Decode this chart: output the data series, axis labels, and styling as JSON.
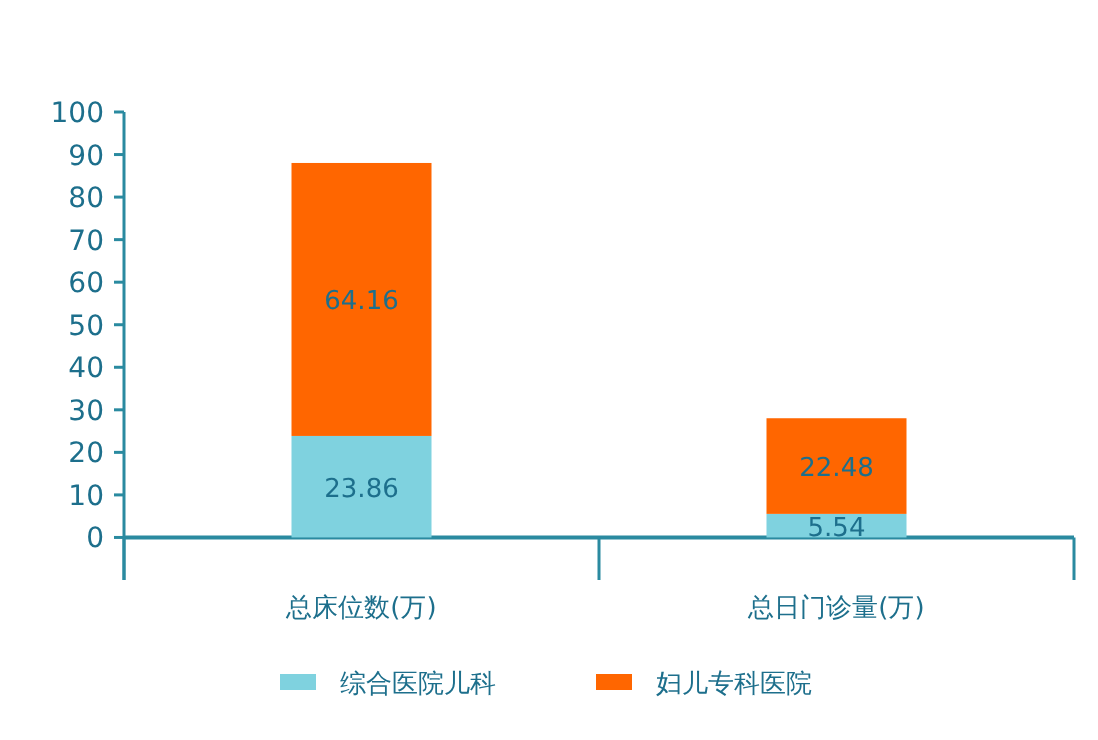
{
  "chart_data": {
    "type": "bar",
    "stacked": true,
    "categories": [
      "总床位数(万)",
      "总日门诊量(万)"
    ],
    "series": [
      {
        "name": "综合医院儿科",
        "color": "#7fd2df",
        "values": [
          23.86,
          5.54
        ]
      },
      {
        "name": "妇儿专科医院",
        "color": "#ff6600",
        "values": [
          64.16,
          22.48
        ]
      }
    ],
    "ylim": [
      -10,
      100
    ],
    "yticks": [
      0,
      10,
      20,
      30,
      40,
      50,
      60,
      70,
      80,
      90,
      100
    ],
    "data_labels": true,
    "legend": "bottom"
  }
}
